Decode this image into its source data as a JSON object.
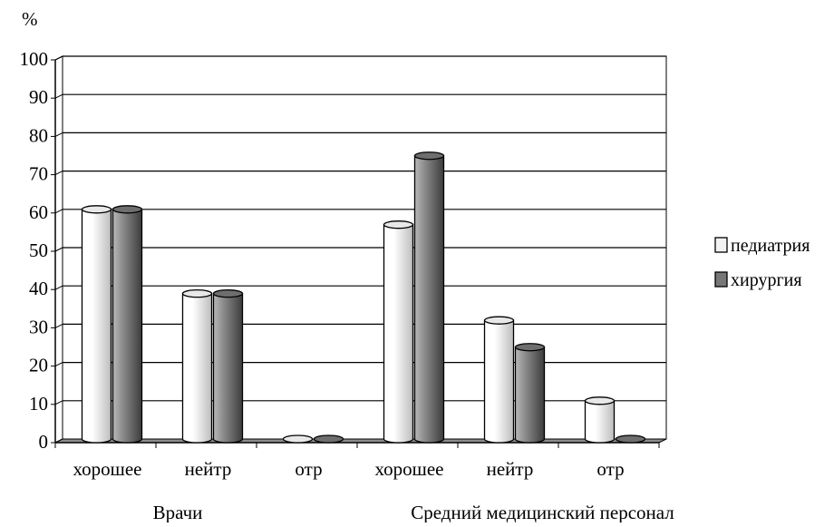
{
  "chart_data": {
    "type": "bar",
    "ylabel": "%",
    "ylim": [
      0,
      100
    ],
    "yticks": [
      0,
      10,
      20,
      30,
      40,
      50,
      60,
      70,
      80,
      90,
      100
    ],
    "grid": true,
    "legend_position": "right",
    "groups": [
      {
        "label": "Врачи",
        "categories": [
          "хорошее",
          "нейтр",
          "отр"
        ]
      },
      {
        "label": "Средний медицинский персонал",
        "categories": [
          "хорошее",
          "нейтр",
          "отр"
        ]
      }
    ],
    "categories": [
      "хорошее",
      "нейтр",
      "отр",
      "хорошее",
      "нейтр",
      "отр"
    ],
    "series": [
      {
        "name": "педиатрия",
        "color": "#f2f2f2",
        "values": [
          60,
          38,
          0,
          56,
          31,
          10
        ]
      },
      {
        "name": "хирургия",
        "color": "#777777",
        "values": [
          60,
          38,
          0,
          74,
          24,
          0
        ]
      }
    ]
  }
}
